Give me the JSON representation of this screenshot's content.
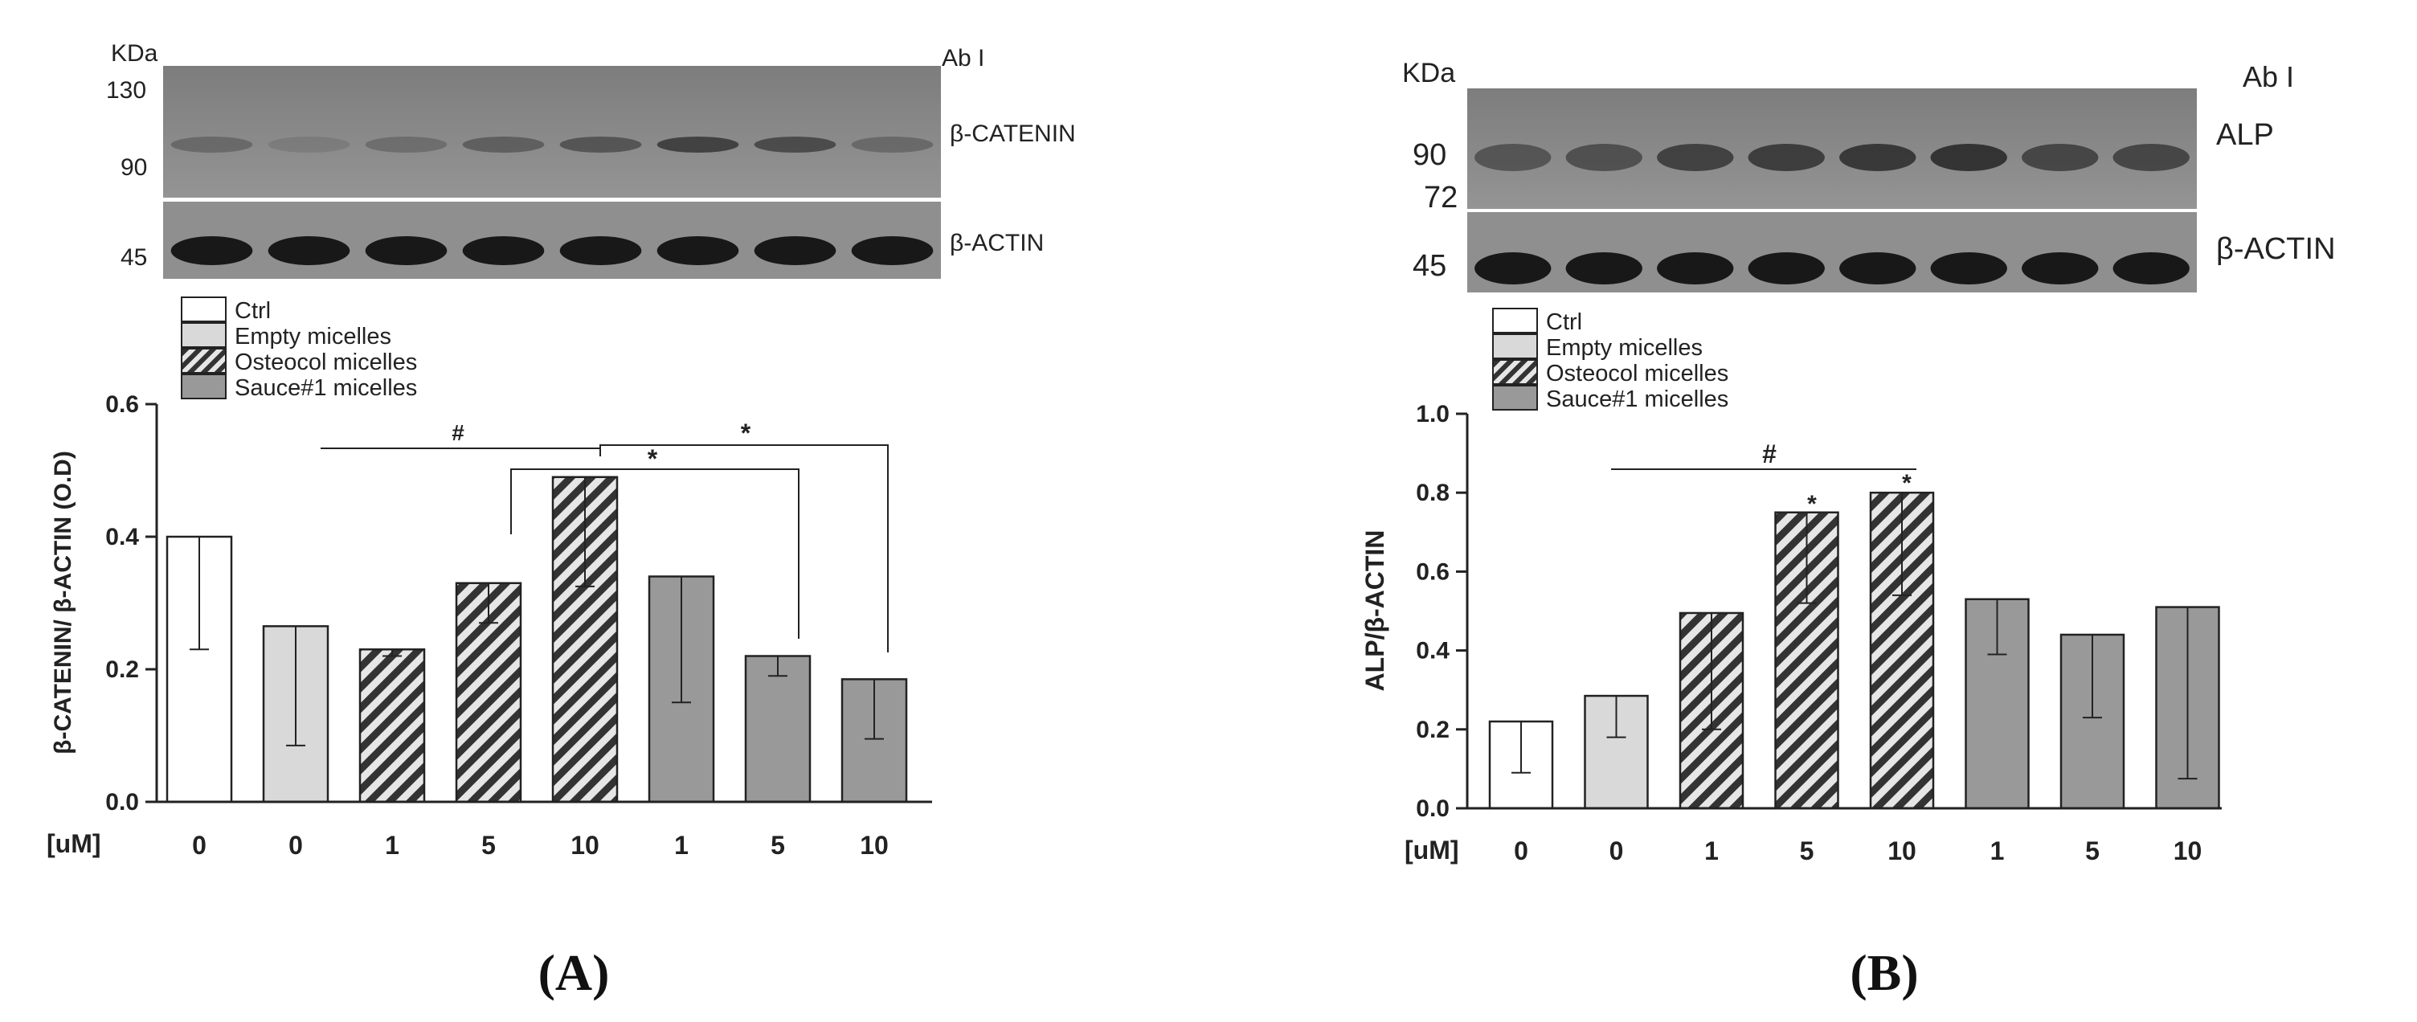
{
  "colors": {
    "ctrl": "#ffffff",
    "empty": "#d9d9d9",
    "osteocol_hatch": "#333333",
    "osteocol_bg": "#e6e6e6",
    "sauce": "#999999",
    "blot_bg": "#8a8a8a",
    "band": "#161616"
  },
  "chart_data": [
    {
      "panel": "(A)",
      "type": "bar",
      "ylabel": "β-CATENIN/ β-ACTIN (O.D)",
      "xunit": "[uM]",
      "ylim": [
        0,
        0.6
      ],
      "yticks": [
        "0.0",
        "0.2",
        "0.4",
        "0.6"
      ],
      "categories": [
        "0",
        "0",
        "1",
        "5",
        "10",
        "1",
        "5",
        "10"
      ],
      "groups": [
        "Ctrl",
        "Empty micelles",
        "Osteocol micelles",
        "Osteocol micelles",
        "Osteocol micelles",
        "Sauce#1 micelles",
        "Sauce#1 micelles",
        "Sauce#1 micelles"
      ],
      "values": [
        0.4,
        0.265,
        0.23,
        0.33,
        0.49,
        0.34,
        0.22,
        0.185
      ],
      "err_low": [
        0.23,
        0.085,
        0.22,
        0.27,
        0.325,
        0.15,
        0.19,
        0.095
      ],
      "err_high": [
        0.4,
        0.265,
        0.23,
        0.33,
        0.49,
        0.34,
        0.22,
        0.185
      ],
      "legend": [
        "Ctrl",
        "Empty micelles",
        "Osteocol micelles",
        "Sauce#1 micelles"
      ],
      "annotations": [
        "#",
        "*",
        "*"
      ],
      "blot": {
        "kda_label": "KDa",
        "ab_label": "Ab I",
        "markers": [
          "130",
          "90",
          "45"
        ],
        "target": "β-CATENIN",
        "loading": "β-ACTIN"
      }
    },
    {
      "panel": "(B)",
      "type": "bar",
      "ylabel": "ALP/β-ACTIN",
      "xunit": "[uM]",
      "ylim": [
        0,
        1.0
      ],
      "yticks": [
        "0.0",
        "0.2",
        "0.4",
        "0.6",
        "0.8",
        "1.0"
      ],
      "categories": [
        "0",
        "0",
        "1",
        "5",
        "10",
        "1",
        "5",
        "10"
      ],
      "groups": [
        "Ctrl",
        "Empty micelles",
        "Osteocol micelles",
        "Osteocol micelles",
        "Osteocol micelles",
        "Sauce#1 micelles",
        "Sauce#1 micelles",
        "Sauce#1 micelles"
      ],
      "values": [
        0.22,
        0.285,
        0.495,
        0.75,
        0.8,
        0.53,
        0.44,
        0.51
      ],
      "err_low": [
        0.09,
        0.18,
        0.2,
        0.52,
        0.54,
        0.39,
        0.23,
        0.075
      ],
      "err_high": [
        0.22,
        0.285,
        0.495,
        0.75,
        0.8,
        0.53,
        0.44,
        0.51
      ],
      "legend": [
        "Ctrl",
        "Empty micelles",
        "Osteocol micelles",
        "Sauce#1 micelles"
      ],
      "annotations": [
        "#",
        "*",
        "*"
      ],
      "blot": {
        "kda_label": "KDa",
        "ab_label": "Ab I",
        "markers": [
          "90",
          "72",
          "45"
        ],
        "target": "ALP",
        "loading": "β-ACTIN"
      }
    }
  ]
}
